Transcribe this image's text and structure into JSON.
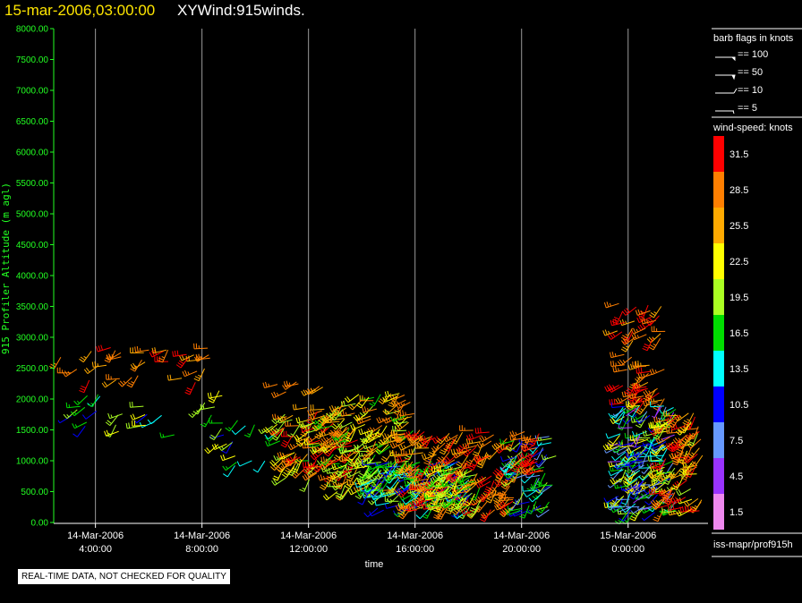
{
  "header": {
    "date_label": "15-mar-2006,03:00:00",
    "title": "XYWind:915winds."
  },
  "colors": {
    "date_label": "#ffe600",
    "axis_text": "#22ff22",
    "gridline": "#9a9a9a"
  },
  "footer": {
    "note": "REAL-TIME DATA, NOT CHECKED FOR QUALITY"
  },
  "chart_data": {
    "type": "scatter",
    "title": "XYWind:915winds.",
    "xlabel": "time",
    "ylabel": "915 Profiler Altitude (m agl)",
    "ylim": [
      0,
      8000
    ],
    "yticks": [
      "0.00",
      "500.00",
      "1000.00",
      "1500.00",
      "2000.00",
      "2500.00",
      "3000.00",
      "3500.00",
      "4000.00",
      "4500.00",
      "5000.00",
      "5500.00",
      "6000.00",
      "6500.00",
      "7000.00",
      "7500.00",
      "8000.00"
    ],
    "xlim": [
      "2006-03-14T02:30:00",
      "2006-03-15T03:00:00"
    ],
    "xticks": [
      {
        "date": "14-Mar-2006",
        "time": "4:00:00",
        "t": "2006-03-14T04:00:00"
      },
      {
        "date": "14-Mar-2006",
        "time": "8:00:00",
        "t": "2006-03-14T08:00:00"
      },
      {
        "date": "14-Mar-2006",
        "time": "12:00:00",
        "t": "2006-03-14T12:00:00"
      },
      {
        "date": "14-Mar-2006",
        "time": "16:00:00",
        "t": "2006-03-14T16:00:00"
      },
      {
        "date": "14-Mar-2006",
        "time": "20:00:00",
        "t": "2006-03-14T20:00:00"
      },
      {
        "date": "15-Mar-2006",
        "time": "0:00:00",
        "t": "2006-03-15T00:00:00"
      }
    ],
    "grid": "vertical-at-ticks",
    "series_note": "wind barbs, colored by wind speed (knots)",
    "barb_legend": {
      "title": "barb flags in knots",
      "entries": [
        "== 100",
        "== 50",
        "== 10",
        "== 5"
      ]
    },
    "speed_legend": {
      "title": "wind-speed: knots",
      "bins": [
        {
          "label": "31.5",
          "color": "#ff0000"
        },
        {
          "label": "28.5",
          "color": "#ff7f00"
        },
        {
          "label": "25.5",
          "color": "#ffaa00"
        },
        {
          "label": "22.5",
          "color": "#ffff00"
        },
        {
          "label": "19.5",
          "color": "#aaff22"
        },
        {
          "label": "16.5",
          "color": "#00dd00"
        },
        {
          "label": "13.5",
          "color": "#00ffff"
        },
        {
          "label": "10.5",
          "color": "#0000ff"
        },
        {
          "label": "7.5",
          "color": "#6699ff"
        },
        {
          "label": "4.5",
          "color": "#9933ff"
        },
        {
          "label": "1.5",
          "color": "#ee88ee"
        }
      ]
    },
    "source_label": "iss-mapr/prof915h",
    "regions": [
      {
        "t0": 2.6,
        "t1": 8.8,
        "a0": 2250,
        "a1": 2850,
        "s0": 24,
        "s1": 33,
        "n": 34
      },
      {
        "t0": 2.9,
        "t1": 4.2,
        "a0": 1400,
        "a1": 2200,
        "s0": 9,
        "s1": 20,
        "n": 10
      },
      {
        "t0": 4.6,
        "t1": 7.0,
        "a0": 1400,
        "a1": 1900,
        "s0": 9,
        "s1": 24,
        "n": 12
      },
      {
        "t0": 7.8,
        "t1": 9.2,
        "a0": 1700,
        "a1": 2150,
        "s0": 14,
        "s1": 24,
        "n": 6
      },
      {
        "t0": 8.4,
        "t1": 11.0,
        "a0": 900,
        "a1": 1700,
        "s0": 9,
        "s1": 24,
        "n": 20
      },
      {
        "t0": 10.8,
        "t1": 12.6,
        "a0": 1800,
        "a1": 2300,
        "s0": 24,
        "s1": 30,
        "n": 10
      },
      {
        "t0": 11.0,
        "t1": 14.0,
        "a0": 700,
        "a1": 1800,
        "s0": 17,
        "s1": 33,
        "n": 110
      },
      {
        "t0": 12.8,
        "t1": 16.0,
        "a0": 500,
        "a1": 2100,
        "s0": 17,
        "s1": 30,
        "n": 140
      },
      {
        "t0": 14.2,
        "t1": 18.2,
        "a0": 180,
        "a1": 1000,
        "s0": 9,
        "s1": 21,
        "n": 150
      },
      {
        "t0": 15.6,
        "t1": 19.8,
        "a0": 200,
        "a1": 1500,
        "s0": 24,
        "s1": 33,
        "n": 170
      },
      {
        "t0": 16.8,
        "t1": 18.5,
        "a0": 250,
        "a1": 900,
        "s0": 15,
        "s1": 24,
        "n": 50
      },
      {
        "t0": 19.6,
        "t1": 21.3,
        "a0": 150,
        "a1": 1400,
        "s0": 6,
        "s1": 20,
        "n": 60
      },
      {
        "t0": 19.9,
        "t1": 21.1,
        "a0": 800,
        "a1": 1500,
        "s0": 27,
        "s1": 33,
        "n": 22
      },
      {
        "t0": 23.6,
        "t1": 25.4,
        "a0": 1900,
        "a1": 3600,
        "s0": 25,
        "s1": 33,
        "n": 60
      },
      {
        "t0": 23.6,
        "t1": 25.8,
        "a0": 150,
        "a1": 1900,
        "s0": 4,
        "s1": 24,
        "n": 190
      },
      {
        "t0": 25.3,
        "t1": 26.8,
        "a0": 150,
        "a1": 1800,
        "s0": 19,
        "s1": 33,
        "n": 90
      }
    ]
  }
}
